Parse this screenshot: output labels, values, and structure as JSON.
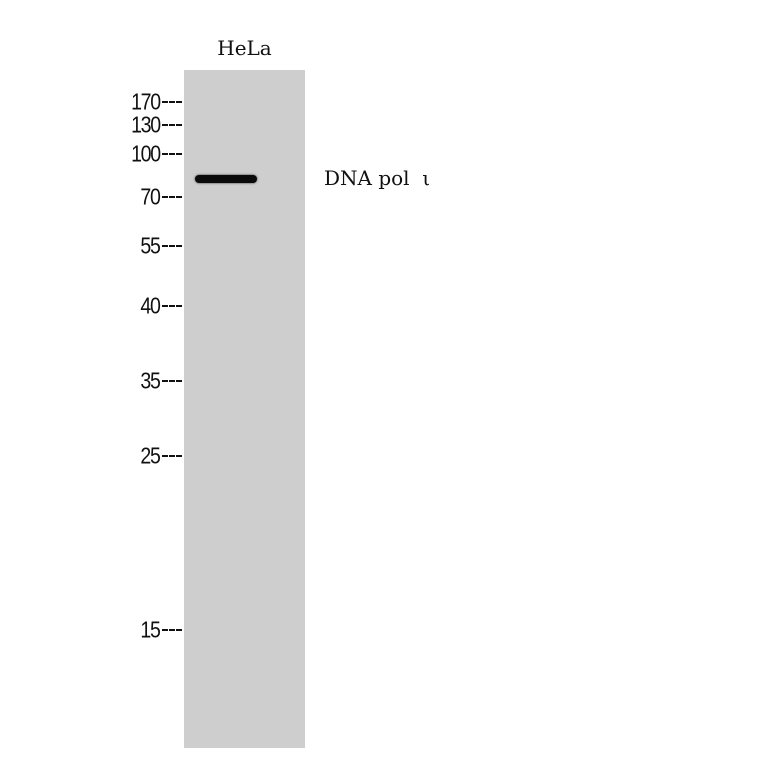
{
  "sample_label": "HeLa",
  "target_label": "DNA pol  ι",
  "markers_kda": [
    "170",
    "130",
    "100",
    "70",
    "55",
    "40",
    "35",
    "25",
    "15"
  ],
  "colors": {
    "lane": "#cecece",
    "band": "#0a0a0a"
  }
}
